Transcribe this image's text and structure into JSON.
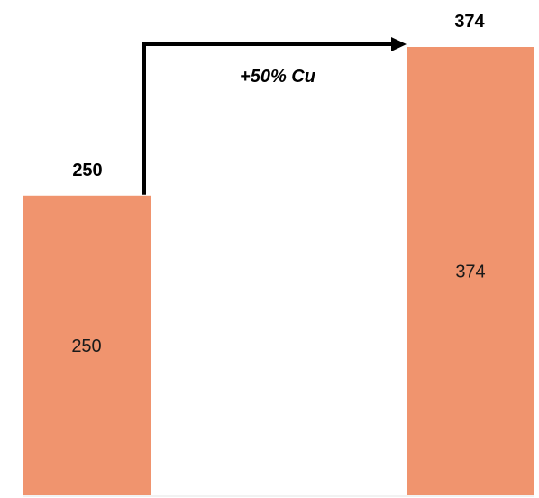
{
  "chart_data": {
    "type": "bar",
    "categories": [
      "",
      ""
    ],
    "values": [
      250,
      374
    ],
    "data_labels_inside": [
      "250",
      "374"
    ],
    "data_labels_top": [
      "250",
      "374"
    ],
    "annotation": "+50% Cu",
    "colors": {
      "bar": "#F0946E",
      "text": "#000000"
    },
    "ylim": [
      0,
      400
    ],
    "grid": false,
    "legend": "none"
  }
}
